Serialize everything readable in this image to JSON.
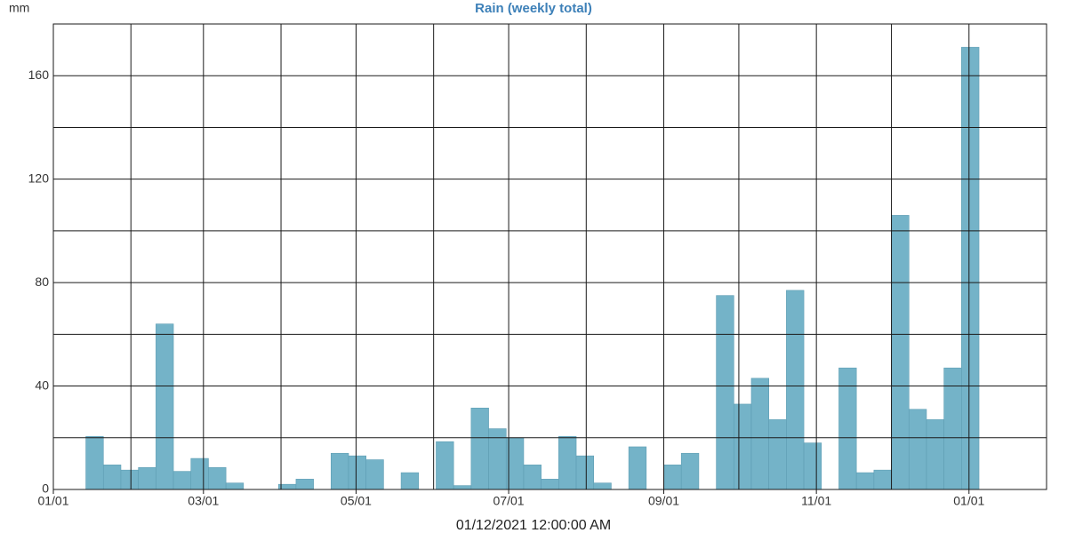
{
  "chart_data": {
    "type": "bar",
    "title": "Rain (weekly total)",
    "y_unit": "mm",
    "footer": "01/12/2021 12:00:00 AM",
    "color": "#74b3c8",
    "title_color": "#3d80b8",
    "bar_days": 7,
    "x": [
      "01/14",
      "01/21",
      "01/28",
      "02/04",
      "02/11",
      "02/18",
      "02/25",
      "03/03",
      "03/10",
      "03/17",
      "03/24",
      "03/31",
      "04/07",
      "04/14",
      "04/21",
      "04/28",
      "05/05",
      "05/12",
      "05/19",
      "05/26",
      "06/02",
      "06/09",
      "06/16",
      "06/23",
      "06/30",
      "07/07",
      "07/14",
      "07/21",
      "07/28",
      "08/04",
      "08/11",
      "08/18",
      "08/25",
      "09/01",
      "09/08",
      "09/15",
      "09/22",
      "09/29",
      "10/06",
      "10/13",
      "10/20",
      "10/27",
      "11/03",
      "11/10",
      "11/17",
      "11/24",
      "12/01",
      "12/08",
      "12/15",
      "12/22",
      "12/29"
    ],
    "values": [
      20.5,
      9.5,
      7.5,
      8.5,
      64,
      7,
      12,
      8.5,
      2.5,
      0,
      0,
      2,
      4,
      0,
      14,
      13,
      11.5,
      0,
      6.5,
      0,
      18.5,
      1.5,
      31.5,
      23.5,
      20,
      9.5,
      4,
      20.5,
      13,
      2.5,
      0,
      16.5,
      0,
      9.5,
      14,
      0,
      75,
      33,
      43,
      27,
      77,
      18,
      0,
      47,
      6.5,
      7.5,
      106,
      31,
      27,
      47,
      171
    ],
    "xlim": [
      "01/01",
      "02/01"
    ],
    "xticks": [
      "01/01",
      "03/01",
      "05/01",
      "07/01",
      "09/01",
      "11/01",
      "01/01"
    ],
    "x_minor_ticks": [
      "02/01",
      "04/01",
      "06/01",
      "08/01",
      "10/01",
      "12/01"
    ],
    "ylim": [
      0,
      180
    ],
    "yticks": [
      0,
      40,
      80,
      120,
      160
    ],
    "y_minor_ticks": [
      20,
      60,
      100,
      140
    ],
    "grid": true
  }
}
